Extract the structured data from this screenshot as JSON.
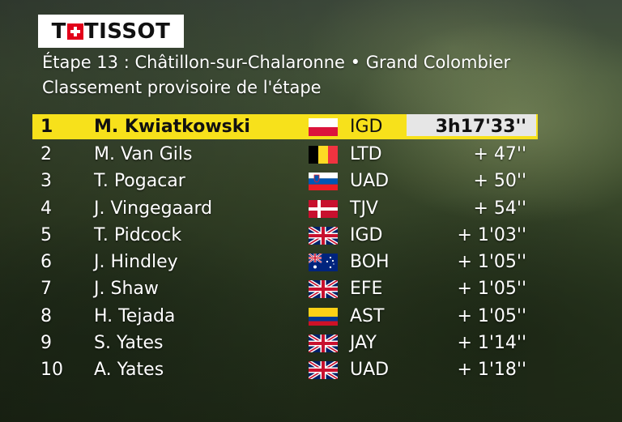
{
  "logo": {
    "text_prefix": "T",
    "text_suffix": "TISSOT"
  },
  "header": {
    "line1": "Étape 13 : Châtillon-sur-Chalaronne • Grand Colombier",
    "line2": "Classement provisoire de l'étape"
  },
  "leader_highlight_color": "#f7e11b",
  "riders": [
    {
      "rank": "1",
      "name": "M. Kwiatkowski",
      "flag": "poland-flag",
      "team": "IGD",
      "time": "3h17'33''"
    },
    {
      "rank": "2",
      "name": "M. Van Gils",
      "flag": "belgium-flag",
      "team": "LTD",
      "time": "+ 47''"
    },
    {
      "rank": "3",
      "name": "T. Pogacar",
      "flag": "slovenia-flag",
      "team": "UAD",
      "time": "+ 50''"
    },
    {
      "rank": "4",
      "name": "J. Vingegaard",
      "flag": "denmark-flag",
      "team": "TJV",
      "time": "+ 54''"
    },
    {
      "rank": "5",
      "name": "T. Pidcock",
      "flag": "uk-flag",
      "team": "IGD",
      "time": "+ 1'03''"
    },
    {
      "rank": "6",
      "name": "J. Hindley",
      "flag": "australia-flag",
      "team": "BOH",
      "time": "+ 1'05''"
    },
    {
      "rank": "7",
      "name": "J. Shaw",
      "flag": "uk-flag",
      "team": "EFE",
      "time": "+ 1'05''"
    },
    {
      "rank": "8",
      "name": "H. Tejada",
      "flag": "colombia-flag",
      "team": "AST",
      "time": "+ 1'05''"
    },
    {
      "rank": "9",
      "name": "S. Yates",
      "flag": "uk-flag",
      "team": "JAY",
      "time": "+ 1'14''"
    },
    {
      "rank": "10",
      "name": "A. Yates",
      "flag": "uk-flag",
      "team": "UAD",
      "time": "+ 1'18''"
    }
  ]
}
